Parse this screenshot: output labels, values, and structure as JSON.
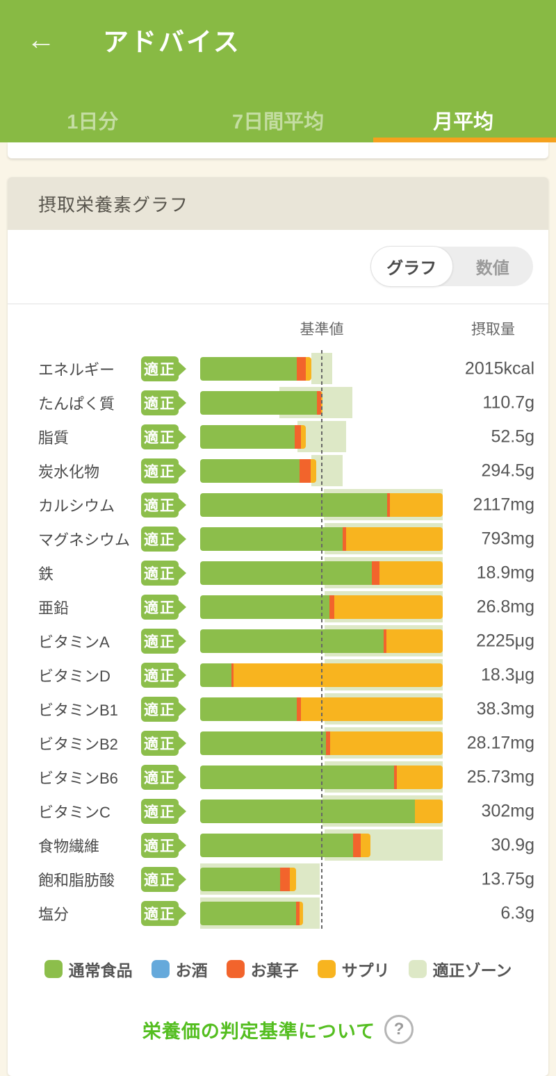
{
  "app_bar": {
    "back_icon": "←",
    "title": "アドバイス"
  },
  "tabs": [
    {
      "label": "1日分",
      "active": false
    },
    {
      "label": "7日間平均",
      "active": false
    },
    {
      "label": "月平均",
      "active": true
    }
  ],
  "card": {
    "header_title": "摂取栄養素グラフ",
    "toggle": {
      "options": [
        {
          "label": "グラフ",
          "selected": true
        },
        {
          "label": "数値",
          "selected": false
        }
      ]
    },
    "columns": {
      "standard": "基準値",
      "intake": "摂取量"
    }
  },
  "chart_data": {
    "type": "bar",
    "orientation": "horizontal",
    "standard_line_label": "基準値",
    "standard_line_pct": 50.1,
    "note": "segment and zone values are percent of bar track width; standard value line sits at ~50%",
    "series_colors": {
      "food": "#8CBE4B",
      "alcohol": "#65A9DB",
      "sweets": "#F2642C",
      "supplement": "#F8B41F",
      "zone": "#DDE8C6"
    },
    "rows": [
      {
        "label": "エネルギー",
        "status": "適正",
        "value": "2015kcal",
        "food": 39.9,
        "sweets": 3.8,
        "supplement": 2.1,
        "zone": [
          45.8,
          54.5
        ]
      },
      {
        "label": "たんぱく質",
        "status": "適正",
        "value": "110.7g",
        "food": 48.1,
        "sweets": 1.7,
        "supplement": 0.7,
        "zone": [
          32.6,
          62.8
        ]
      },
      {
        "label": "脂質",
        "status": "適正",
        "value": "52.5g",
        "food": 39.0,
        "sweets": 2.6,
        "supplement": 2.0,
        "zone": [
          40.0,
          60.3
        ]
      },
      {
        "label": "炭水化物",
        "status": "適正",
        "value": "294.5g",
        "food": 40.9,
        "sweets": 4.8,
        "supplement": 2.2,
        "zone": [
          45.8,
          58.8
        ]
      },
      {
        "label": "カルシウム",
        "status": "適正",
        "value": "2117mg",
        "food": 77.1,
        "sweets": 1.0,
        "supplement": 21.9,
        "zone": [
          51.0,
          100
        ]
      },
      {
        "label": "マグネシウム",
        "status": "適正",
        "value": "793mg",
        "food": 58.7,
        "sweets": 1.6,
        "supplement": 39.7,
        "zone": [
          51.3,
          100
        ]
      },
      {
        "label": "鉄",
        "status": "適正",
        "value": "18.9mg",
        "food": 70.8,
        "sweets": 3.1,
        "supplement": 26.1,
        "zone": [
          51.3,
          100
        ]
      },
      {
        "label": "亜鉛",
        "status": "適正",
        "value": "26.8mg",
        "food": 53.3,
        "sweets": 2.0,
        "supplement": 44.7,
        "zone": [
          51.2,
          100
        ]
      },
      {
        "label": "ビタミンA",
        "status": "適正",
        "value": "2225μg",
        "food": 75.6,
        "sweets": 1.2,
        "supplement": 23.2,
        "zone": [
          51.2,
          100
        ]
      },
      {
        "label": "ビタミンD",
        "status": "適正",
        "value": "18.3μg",
        "food": 12.8,
        "sweets": 0.9,
        "supplement": 86.3,
        "zone": [
          51.2,
          100
        ]
      },
      {
        "label": "ビタミンB1",
        "status": "適正",
        "value": "38.3mg",
        "food": 39.8,
        "sweets": 1.7,
        "supplement": 58.5,
        "zone": [
          51.2,
          100
        ]
      },
      {
        "label": "ビタミンB2",
        "status": "適正",
        "value": "28.17mg",
        "food": 51.9,
        "sweets": 1.7,
        "supplement": 46.4,
        "zone": [
          51.2,
          100
        ]
      },
      {
        "label": "ビタミンB6",
        "status": "適正",
        "value": "25.73mg",
        "food": 79.9,
        "sweets": 1.2,
        "supplement": 18.9,
        "zone": [
          51.2,
          100
        ]
      },
      {
        "label": "ビタミンC",
        "status": "適正",
        "value": "302mg",
        "food": 88.6,
        "sweets": 0,
        "supplement": 11.4,
        "zone": [
          50.5,
          100
        ]
      },
      {
        "label": "食物繊維",
        "status": "適正",
        "value": "30.9g",
        "food": 63.0,
        "sweets": 3.3,
        "supplement": 4.0,
        "zone": [
          51.2,
          100
        ]
      },
      {
        "label": "飽和脂肪酸",
        "status": "適正",
        "value": "13.75g",
        "food": 32.9,
        "sweets": 4.0,
        "supplement": 2.6,
        "zone": [
          0,
          49.3
        ]
      },
      {
        "label": "塩分",
        "status": "適正",
        "value": "6.3g",
        "food": 39.5,
        "sweets": 1.5,
        "supplement": 1.3,
        "zone": [
          0,
          49.3
        ]
      }
    ]
  },
  "legend": [
    {
      "label": "通常食品",
      "color": "#8CBE4B"
    },
    {
      "label": "お酒",
      "color": "#65A9DB"
    },
    {
      "label": "お菓子",
      "color": "#F2642C"
    },
    {
      "label": "サプリ",
      "color": "#F8B41F"
    },
    {
      "label": "適正ゾーン",
      "color": "#DDE8C6"
    }
  ],
  "footer": {
    "link": "栄養価の判定基準について",
    "help_icon": "?"
  }
}
